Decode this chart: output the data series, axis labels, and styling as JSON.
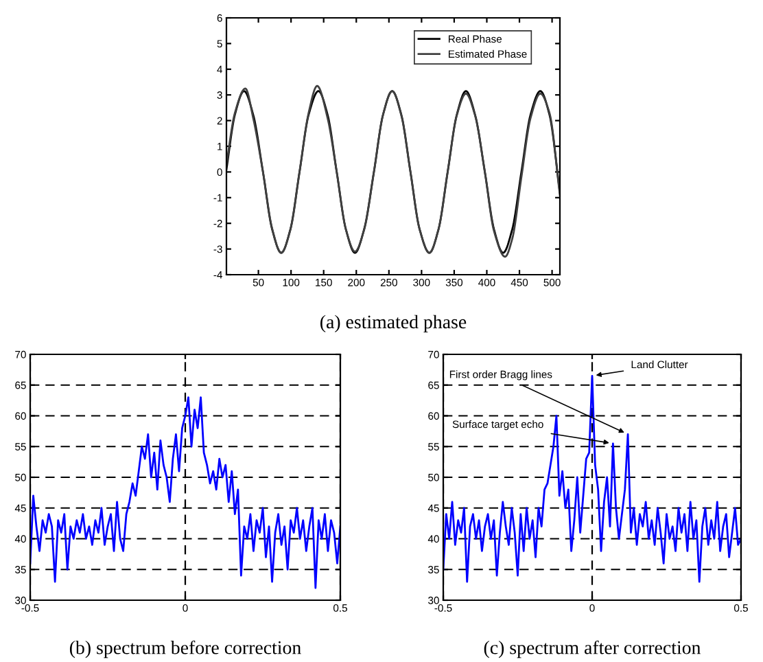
{
  "chart_data": [
    {
      "type": "line",
      "xlabel": "(a) estimated phase",
      "xlim": [
        1,
        512
      ],
      "ylim": [
        -4,
        6
      ],
      "xticks": [
        50,
        100,
        150,
        200,
        250,
        300,
        350,
        400,
        450,
        500
      ],
      "yticks": [
        -4,
        -3,
        -2,
        -1,
        0,
        1,
        2,
        3,
        4,
        5,
        6
      ],
      "grid": false,
      "legend": "top right",
      "series": [
        {
          "name": "Real Phase",
          "color": "#000000",
          "x": [
            1,
            14,
            28,
            42,
            57,
            71,
            85,
            99,
            113,
            127,
            142,
            156,
            170,
            184,
            198,
            212,
            227,
            241,
            255,
            269,
            283,
            297,
            312,
            326,
            340,
            354,
            368,
            382,
            397,
            411,
            425,
            439,
            453,
            467,
            482,
            496,
            512
          ],
          "values": [
            0.1,
            2.23,
            3.15,
            2.23,
            0,
            -2.23,
            -3.15,
            -2.23,
            0,
            2.23,
            3.15,
            2.23,
            0,
            -2.23,
            -3.15,
            -2.23,
            0,
            2.23,
            3.15,
            2.23,
            0,
            -2.23,
            -3.15,
            -2.23,
            0,
            2.23,
            3.15,
            2.23,
            0,
            -2.23,
            -3.15,
            -2.23,
            0,
            2.23,
            3.15,
            2.23,
            -0.8
          ]
        },
        {
          "name": "Estimated Phase",
          "color": "#404040",
          "x": [
            1,
            14,
            30,
            42,
            57,
            71,
            85,
            99,
            113,
            127,
            140,
            156,
            170,
            184,
            198,
            212,
            227,
            241,
            255,
            269,
            283,
            297,
            312,
            326,
            340,
            354,
            368,
            382,
            397,
            411,
            428,
            439,
            453,
            467,
            482,
            496,
            512
          ],
          "values": [
            0.3,
            2.3,
            3.25,
            2.1,
            0,
            -2.2,
            -3.15,
            -2.25,
            0,
            2.3,
            3.35,
            2.1,
            0,
            -2.23,
            -3.1,
            -2.25,
            0,
            2.23,
            3.15,
            2.2,
            0,
            -2.23,
            -3.15,
            -2.23,
            0,
            2.2,
            3.05,
            2.2,
            0,
            -2.3,
            -3.3,
            -2.6,
            -0.2,
            2.1,
            3.05,
            2.3,
            -0.9
          ]
        }
      ]
    },
    {
      "type": "line",
      "xlabel": "(b) spectrum before correction",
      "xlim": [
        -0.5,
        0.5
      ],
      "ylim": [
        30,
        70
      ],
      "xticks": [
        -0.5,
        0,
        0.5
      ],
      "yticks": [
        30,
        35,
        40,
        45,
        50,
        55,
        60,
        65,
        70
      ],
      "grid": true,
      "line_style": "solid",
      "series": [
        {
          "color": "#0000ff",
          "x": [
            -0.5,
            -0.49,
            -0.48,
            -0.47,
            -0.46,
            -0.45,
            -0.44,
            -0.43,
            -0.42,
            -0.41,
            -0.4,
            -0.39,
            -0.38,
            -0.37,
            -0.36,
            -0.35,
            -0.34,
            -0.33,
            -0.32,
            -0.31,
            -0.3,
            -0.29,
            -0.28,
            -0.27,
            -0.26,
            -0.25,
            -0.24,
            -0.23,
            -0.22,
            -0.21,
            -0.2,
            -0.19,
            -0.18,
            -0.17,
            -0.16,
            -0.15,
            -0.14,
            -0.13,
            -0.12,
            -0.11,
            -0.1,
            -0.09,
            -0.08,
            -0.07,
            -0.06,
            -0.05,
            -0.04,
            -0.03,
            -0.02,
            -0.01,
            0,
            0.01,
            0.02,
            0.03,
            0.04,
            0.05,
            0.06,
            0.07,
            0.08,
            0.09,
            0.1,
            0.11,
            0.12,
            0.13,
            0.14,
            0.15,
            0.16,
            0.17,
            0.18,
            0.19,
            0.2,
            0.21,
            0.22,
            0.23,
            0.24,
            0.25,
            0.26,
            0.27,
            0.28,
            0.29,
            0.3,
            0.31,
            0.32,
            0.33,
            0.34,
            0.35,
            0.36,
            0.37,
            0.38,
            0.39,
            0.4,
            0.41,
            0.42,
            0.43,
            0.44,
            0.45,
            0.46,
            0.47,
            0.48,
            0.49,
            0.5
          ],
          "values": [
            36,
            47,
            42,
            38,
            43,
            41,
            44,
            42,
            33,
            43,
            41,
            44,
            35,
            42,
            40,
            43,
            41,
            44,
            40,
            42,
            39,
            43,
            41,
            45,
            39,
            42,
            44,
            38,
            46,
            40,
            38,
            44,
            46,
            49,
            47,
            51,
            55,
            53,
            57,
            50,
            54,
            48,
            56,
            52,
            50,
            46,
            53,
            57,
            51,
            58,
            60,
            63,
            55,
            61,
            58,
            63,
            54,
            52,
            49,
            51,
            48,
            53,
            50,
            52,
            46,
            51,
            44,
            48,
            34,
            42,
            40,
            44,
            38,
            43,
            41,
            45,
            37,
            42,
            33,
            41,
            44,
            39,
            42,
            35,
            43,
            41,
            45,
            40,
            43,
            38,
            42,
            45,
            32,
            43,
            40,
            44,
            38,
            43,
            41,
            36,
            42
          ]
        }
      ]
    },
    {
      "type": "line",
      "xlabel": "(c) spectrum after correction",
      "xlim": [
        -0.5,
        0.5
      ],
      "ylim": [
        30,
        70
      ],
      "xticks": [
        -0.5,
        0,
        0.5
      ],
      "yticks": [
        30,
        35,
        40,
        45,
        50,
        55,
        60,
        65,
        70
      ],
      "grid": true,
      "line_style": "solid",
      "annotations": [
        {
          "text": "Land Clutter",
          "x": 0,
          "y": 66.5
        },
        {
          "text": "First order Bragg lines",
          "x": 0.12,
          "y": 57
        },
        {
          "text": "Surface target echo",
          "x": 0.07,
          "y": 55.5
        }
      ],
      "series": [
        {
          "color": "#0000ff",
          "x": [
            -0.5,
            -0.49,
            -0.48,
            -0.47,
            -0.46,
            -0.45,
            -0.44,
            -0.43,
            -0.42,
            -0.41,
            -0.4,
            -0.39,
            -0.38,
            -0.37,
            -0.36,
            -0.35,
            -0.34,
            -0.33,
            -0.32,
            -0.31,
            -0.3,
            -0.29,
            -0.28,
            -0.27,
            -0.26,
            -0.25,
            -0.24,
            -0.23,
            -0.22,
            -0.21,
            -0.2,
            -0.19,
            -0.18,
            -0.17,
            -0.16,
            -0.15,
            -0.14,
            -0.13,
            -0.12,
            -0.11,
            -0.1,
            -0.09,
            -0.08,
            -0.07,
            -0.06,
            -0.05,
            -0.04,
            -0.03,
            -0.02,
            -0.01,
            0,
            0.01,
            0.02,
            0.03,
            0.04,
            0.05,
            0.06,
            0.07,
            0.08,
            0.09,
            0.1,
            0.11,
            0.12,
            0.13,
            0.14,
            0.15,
            0.16,
            0.17,
            0.18,
            0.19,
            0.2,
            0.21,
            0.22,
            0.23,
            0.24,
            0.25,
            0.26,
            0.27,
            0.28,
            0.29,
            0.3,
            0.31,
            0.32,
            0.33,
            0.34,
            0.35,
            0.36,
            0.37,
            0.38,
            0.39,
            0.4,
            0.41,
            0.42,
            0.43,
            0.44,
            0.45,
            0.46,
            0.47,
            0.48,
            0.49,
            0.5
          ],
          "values": [
            35,
            44,
            40,
            46,
            39,
            43,
            41,
            45,
            33,
            42,
            44,
            40,
            43,
            38,
            42,
            44,
            40,
            43,
            34,
            41,
            46,
            42,
            39,
            45,
            41,
            34,
            44,
            38,
            45,
            40,
            43,
            37,
            45,
            42,
            48,
            49,
            52,
            55,
            60,
            47,
            51,
            45,
            48,
            38,
            43,
            50,
            41,
            47,
            53,
            54,
            66.5,
            52,
            48,
            38,
            46,
            50,
            42,
            55.5,
            45,
            40,
            44,
            48,
            57,
            41,
            45,
            39,
            44,
            42,
            46,
            40,
            43,
            39,
            45,
            41,
            36,
            44,
            40,
            42,
            38,
            45,
            41,
            44,
            38,
            46,
            40,
            43,
            33,
            42,
            45,
            39,
            43,
            40,
            46,
            38,
            42,
            44,
            37,
            41,
            45,
            39,
            40
          ]
        }
      ]
    }
  ]
}
